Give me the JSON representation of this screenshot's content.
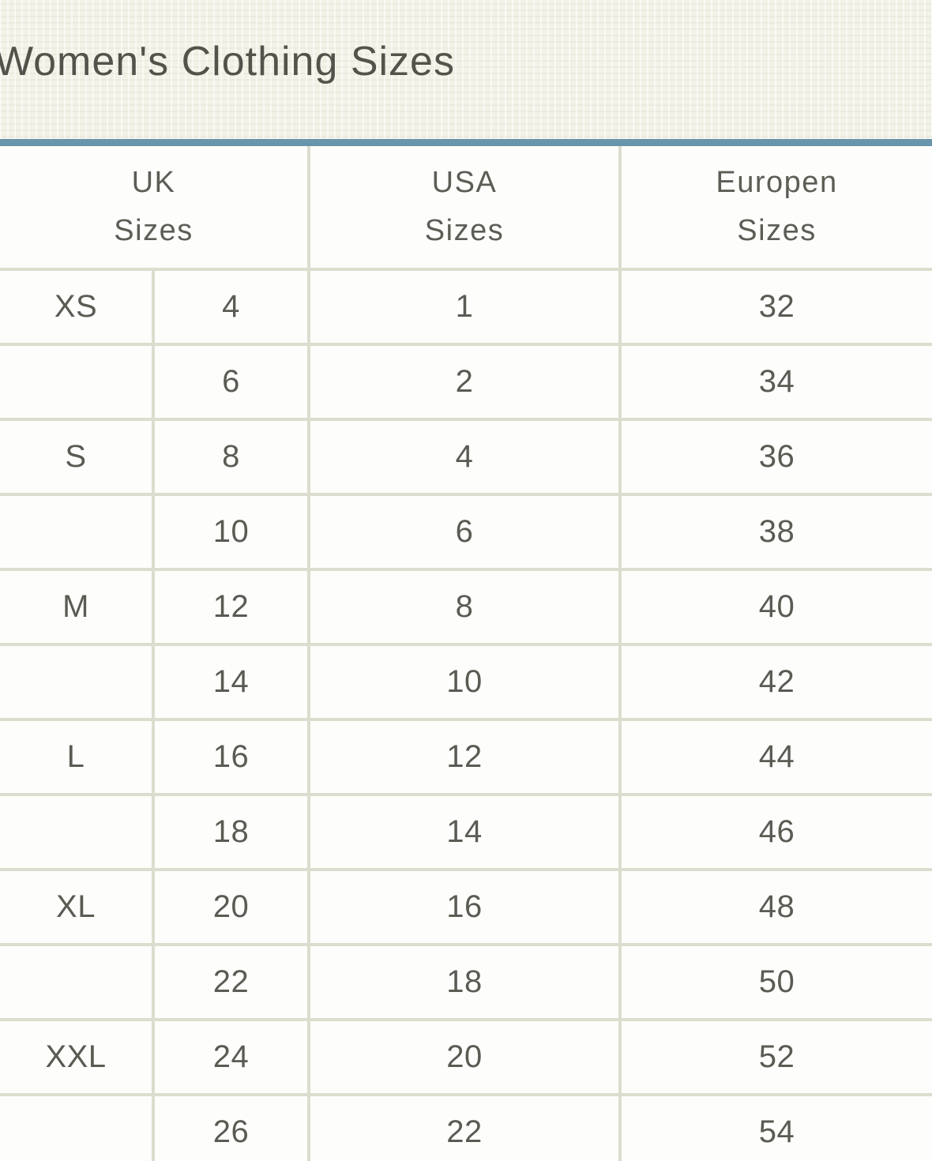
{
  "page": {
    "title": "Women's Clothing Sizes"
  },
  "colors": {
    "page_background": "#f3f2e8",
    "cell_background": "#fdfdfb",
    "table_border": "#dcddce",
    "accent_bar": "#6795ac",
    "text": "#5b5b54",
    "title_text": "#53534b"
  },
  "table": {
    "header_labels": [
      "UK\nSizes",
      "USA\nSizes",
      "Europen\nSizes"
    ]
  },
  "chart_data": {
    "type": "table",
    "title": "Women's Clothing Sizes",
    "columns": [
      "UK Sizes (letter)",
      "UK Sizes (number)",
      "USA Sizes",
      "Europen Sizes"
    ],
    "rows": [
      {
        "letter": "XS",
        "uk": "4",
        "usa": "1",
        "european": "32"
      },
      {
        "letter": "",
        "uk": "6",
        "usa": "2",
        "european": "34"
      },
      {
        "letter": "S",
        "uk": "8",
        "usa": "4",
        "european": "36"
      },
      {
        "letter": "",
        "uk": "10",
        "usa": "6",
        "european": "38"
      },
      {
        "letter": "M",
        "uk": "12",
        "usa": "8",
        "european": "40"
      },
      {
        "letter": "",
        "uk": "14",
        "usa": "10",
        "european": "42"
      },
      {
        "letter": "L",
        "uk": "16",
        "usa": "12",
        "european": "44"
      },
      {
        "letter": "",
        "uk": "18",
        "usa": "14",
        "european": "46"
      },
      {
        "letter": "XL",
        "uk": "20",
        "usa": "16",
        "european": "48"
      },
      {
        "letter": "",
        "uk": "22",
        "usa": "18",
        "european": "50"
      },
      {
        "letter": "XXL",
        "uk": "24",
        "usa": "20",
        "european": "52"
      },
      {
        "letter": "",
        "uk": "26",
        "usa": "22",
        "european": "54"
      }
    ]
  }
}
